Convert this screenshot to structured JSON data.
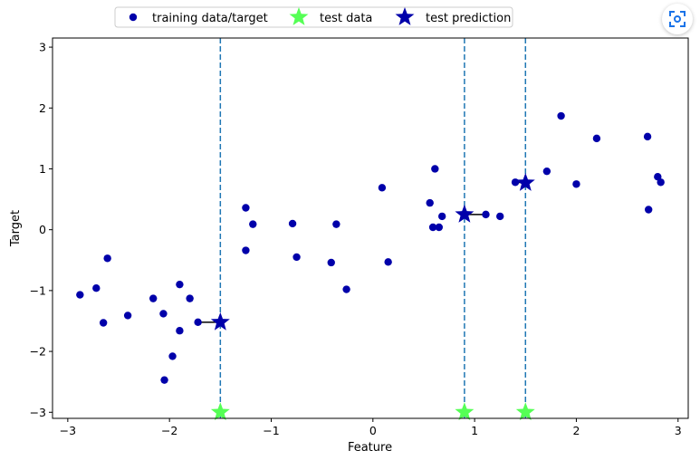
{
  "chart_data": {
    "type": "scatter",
    "xlabel": "Feature",
    "ylabel": "Target",
    "xlim": [
      -3.15,
      3.1
    ],
    "ylim": [
      -3.1,
      3.15
    ],
    "xticks": [
      -3,
      -2,
      -1,
      0,
      1,
      2,
      3
    ],
    "xtick_labels": [
      "−3",
      "−2",
      "−1",
      "0",
      "1",
      "2",
      "3"
    ],
    "yticks": [
      -3,
      -2,
      -1,
      0,
      1,
      2,
      3
    ],
    "ytick_labels": [
      "−3",
      "−2",
      "−1",
      "0",
      "1",
      "2",
      "3"
    ],
    "grid": false,
    "legend_placement": "top-center, outside plot",
    "series": [
      {
        "name": "training data/target",
        "marker": "circle",
        "color": "#0000aa",
        "points": [
          [
            -2.88,
            -1.07
          ],
          [
            -2.72,
            -0.96
          ],
          [
            -2.65,
            -1.53
          ],
          [
            -2.61,
            -0.47
          ],
          [
            -2.41,
            -1.41
          ],
          [
            -2.16,
            -1.13
          ],
          [
            -2.06,
            -1.38
          ],
          [
            -2.05,
            -2.47
          ],
          [
            -1.97,
            -2.08
          ],
          [
            -1.9,
            -0.9
          ],
          [
            -1.9,
            -1.66
          ],
          [
            -1.8,
            -1.13
          ],
          [
            -1.72,
            -1.52
          ],
          [
            -1.25,
            0.36
          ],
          [
            -1.25,
            -0.34
          ],
          [
            -1.18,
            0.09
          ],
          [
            -0.79,
            0.1
          ],
          [
            -0.75,
            -0.45
          ],
          [
            -0.41,
            -0.54
          ],
          [
            -0.36,
            0.09
          ],
          [
            -0.26,
            -0.98
          ],
          [
            0.09,
            0.69
          ],
          [
            0.15,
            -0.53
          ],
          [
            0.56,
            0.44
          ],
          [
            0.59,
            0.04
          ],
          [
            0.61,
            1.0
          ],
          [
            0.65,
            0.04
          ],
          [
            0.68,
            0.22
          ],
          [
            1.11,
            0.25
          ],
          [
            1.25,
            0.22
          ],
          [
            1.4,
            0.78
          ],
          [
            1.71,
            0.96
          ],
          [
            1.85,
            1.87
          ],
          [
            2.0,
            0.75
          ],
          [
            2.2,
            1.5
          ],
          [
            2.7,
            1.53
          ],
          [
            2.71,
            0.33
          ],
          [
            2.8,
            0.87
          ],
          [
            2.83,
            0.78
          ]
        ]
      },
      {
        "name": "test data",
        "marker": "star",
        "color": "#55ff55",
        "points": [
          [
            -1.5,
            -3.0
          ],
          [
            0.9,
            -3.0
          ],
          [
            1.5,
            -3.0
          ]
        ]
      },
      {
        "name": "test prediction",
        "marker": "star",
        "color": "#0000aa",
        "points": [
          [
            -1.5,
            -1.52
          ],
          [
            0.9,
            0.25
          ],
          [
            1.5,
            0.77
          ]
        ]
      }
    ],
    "vlines": [
      -1.5,
      0.9,
      1.5
    ],
    "vline_color": "#1f77b4",
    "prediction_segments": [
      [
        [
          -1.72,
          -1.52
        ],
        [
          -1.5,
          -1.52
        ]
      ],
      [
        [
          0.9,
          0.25
        ],
        [
          1.11,
          0.25
        ]
      ],
      [
        [
          1.4,
          0.78
        ],
        [
          1.5,
          0.77
        ]
      ]
    ]
  },
  "ui": {
    "scan_icon": "scan-icon"
  }
}
